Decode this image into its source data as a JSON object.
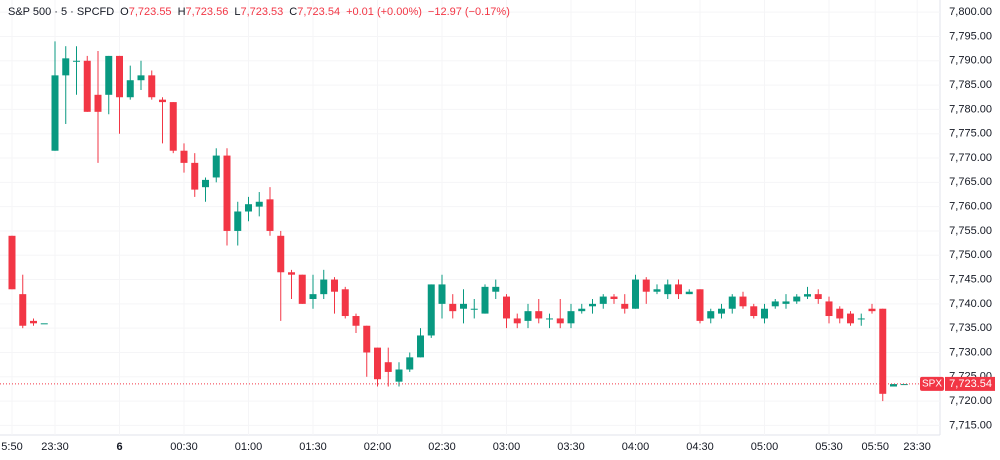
{
  "header": {
    "symbol": "S&P 500 · 5 · SPCFD",
    "fields": [
      {
        "label": "O",
        "value": "7,723.55"
      },
      {
        "label": "H",
        "value": "7,723.56"
      },
      {
        "label": "L",
        "value": "7,723.53"
      },
      {
        "label": "C",
        "value": "7,723.54"
      }
    ],
    "change": "+0.01 (+0.00%)",
    "day_change": "−12.97 (−0.17%)"
  },
  "chart_data": {
    "type": "candlestick",
    "up_color": "#089981",
    "down_color": "#f23645",
    "grid": true,
    "open": [
      7754,
      7742,
      7736.5,
      7736,
      7771.5,
      7787,
      7789.8,
      7790,
      7783,
      7783,
      7791,
      7782.5,
      7786,
      7787,
      7782,
      7781.5,
      7771.5,
      7769,
      7764,
      7766,
      7770.5,
      7755,
      7759,
      7760,
      7761.5,
      7754,
      7746.5,
      7746,
      7741,
      7742,
      7745,
      7743,
      7737.5,
      7735.5,
      7731,
      7728,
      7724,
      7726.5,
      7729,
      7733.5,
      7740,
      7740,
      7739,
      7739,
      7738,
      7742.5,
      7741.5,
      7737,
      7736.5,
      7738.5,
      7737,
      7737,
      7736,
      7738.5,
      7739.5,
      7740,
      7741.5,
      7740,
      7739,
      7745,
      7742.5,
      7742,
      7744,
      7742,
      7743,
      7737,
      7738,
      7739,
      7741.5,
      7739.5,
      7737,
      7739.5,
      7740,
      7740.5,
      7741.5,
      7742,
      7740.5,
      7739,
      7738,
      7737,
      7739,
      7739,
      7723,
      7723.5
    ],
    "high": [
      7754,
      7746,
      7737,
      7736,
      7794,
      7793,
      7793,
      7791,
      7792,
      7791,
      7791,
      7789,
      7790,
      7788,
      7782.5,
      7781.5,
      7773,
      7771,
      7766,
      7772,
      7772,
      7761,
      7762,
      7763,
      7764,
      7755,
      7747,
      7746,
      7746,
      7747,
      7745.5,
      7743.5,
      7738,
      7735.5,
      7731,
      7731,
      7728,
      7730,
      7735,
      7744,
      7746,
      7742,
      7743,
      7741,
      7744,
      7745,
      7742,
      7738,
      7740,
      7741,
      7738,
      7741,
      7740,
      7740,
      7741,
      7742,
      7742,
      7742,
      7746,
      7745.5,
      7744,
      7745,
      7745,
      7743,
      7743,
      7739,
      7740,
      7742,
      7742.5,
      7740,
      7740,
      7741,
      7742,
      7742,
      7743.5,
      7743,
      7741.5,
      7739.5,
      7738.5,
      7738,
      7740,
      7739,
      7723.5,
      7723.5
    ],
    "low": [
      7743,
      7735,
      7735.5,
      7736,
      7771.5,
      7777,
      7783,
      7779.5,
      7769,
      7779,
      7775,
      7782,
      7784,
      7782,
      7773,
      7771,
      7767,
      7762,
      7761,
      7765,
      7752,
      7752,
      7757,
      7758,
      7754,
      7736.5,
      7741,
      7740,
      7739,
      7741,
      7738,
      7737,
      7734,
      7725,
      7723,
      7723,
      7723,
      7726,
      7729,
      7733,
      7737,
      7737,
      7736,
      7737,
      7738,
      7741,
      7735,
      7735,
      7735,
      7736,
      7735,
      7735,
      7735,
      7738,
      7738,
      7739,
      7740,
      7738,
      7739,
      7740,
      7742,
      7741,
      7741,
      7742,
      7736,
      7736,
      7737,
      7738,
      7739,
      7737,
      7736,
      7739,
      7739,
      7740,
      7741,
      7740,
      7736,
      7736,
      7735.5,
      7735.5,
      7738,
      7720,
      7723,
      7723.5
    ],
    "close": [
      7743,
      7735.5,
      7736,
      7736,
      7787,
      7790.5,
      7790,
      7779.5,
      7779.5,
      7791,
      7782.5,
      7786,
      7787,
      7782.5,
      7781.5,
      7771.5,
      7769,
      7763.5,
      7765.5,
      7770.5,
      7755,
      7759,
      7760.5,
      7761,
      7755,
      7746.5,
      7746,
      7740,
      7742,
      7745,
      7742.5,
      7737.5,
      7735.5,
      7730,
      7724.5,
      7726,
      7726.5,
      7729,
      7733.5,
      7744,
      7744,
      7738.5,
      7740,
      7739,
      7743.5,
      7743.5,
      7737,
      7736,
      7738.5,
      7737,
      7737,
      7736,
      7738.5,
      7739,
      7740,
      7741.5,
      7741,
      7739,
      7745,
      7742.5,
      7743,
      7744,
      7742,
      7742.5,
      7736.5,
      7738.5,
      7739,
      7741.5,
      7739.5,
      7737.5,
      7739,
      7740.5,
      7740.5,
      7741.5,
      7742,
      7741,
      7737.5,
      7737,
      7736,
      7737,
      7738.5,
      7721.5,
      7723.5,
      7723.5
    ],
    "ylim": [
      7712,
      7802.5
    ],
    "yticks": [
      {
        "value": 7715,
        "label": "7,715.00"
      },
      {
        "value": 7720,
        "label": "7,720.00"
      },
      {
        "value": 7725,
        "label": "7,725.00"
      },
      {
        "value": 7730,
        "label": "7,730.00"
      },
      {
        "value": 7735,
        "label": "7,735.00"
      },
      {
        "value": 7740,
        "label": "7,740.00"
      },
      {
        "value": 7745,
        "label": "7,745.00"
      },
      {
        "value": 7750,
        "label": "7,750.00"
      },
      {
        "value": 7755,
        "label": "7,755.00"
      },
      {
        "value": 7760,
        "label": "7,760.00"
      },
      {
        "value": 7765,
        "label": "7,765.00"
      },
      {
        "value": 7770,
        "label": "7,770.00"
      },
      {
        "value": 7775,
        "label": "7,775.00"
      },
      {
        "value": 7780,
        "label": "7,780.00"
      },
      {
        "value": 7785,
        "label": "7,785.00"
      },
      {
        "value": 7790,
        "label": "7,790.00"
      },
      {
        "value": 7795,
        "label": "7,795.00"
      },
      {
        "value": 7800,
        "label": "7,800.00"
      }
    ],
    "xticks": [
      {
        "value": 0,
        "label": "5:50"
      },
      {
        "value": 4,
        "label": "23:30"
      },
      {
        "value": 10,
        "label": "6"
      },
      {
        "value": 16,
        "label": "00:30"
      },
      {
        "value": 22,
        "label": "01:00"
      },
      {
        "value": 28,
        "label": "01:30"
      },
      {
        "value": 34,
        "label": "02:00"
      },
      {
        "value": 40,
        "label": "02:30"
      },
      {
        "value": 46,
        "label": "03:00"
      },
      {
        "value": 52,
        "label": "03:30"
      },
      {
        "value": 58,
        "label": "04:00"
      },
      {
        "value": 64,
        "label": "04:30"
      },
      {
        "value": 70,
        "label": "05:00"
      },
      {
        "value": 76,
        "label": "05:30"
      },
      {
        "value": 80.3,
        "label": "05:50"
      },
      {
        "value": 84.2,
        "label": "23:30"
      }
    ],
    "last_price": 7723.54,
    "last_price_label": "7,723.54",
    "last_symbol": "SPX"
  }
}
